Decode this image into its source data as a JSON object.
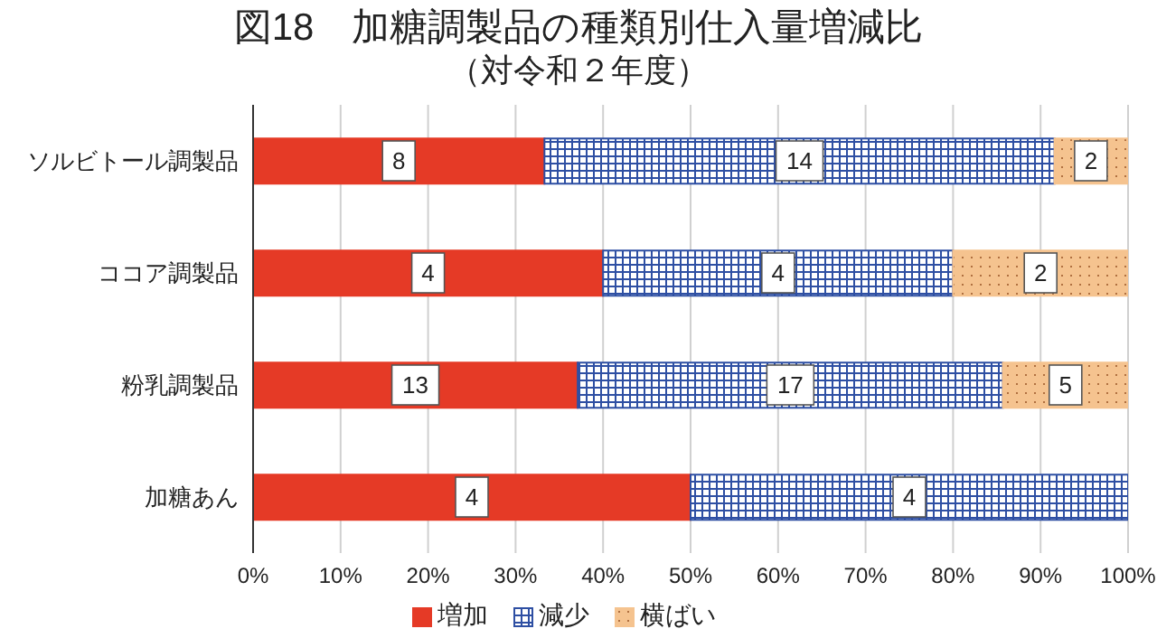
{
  "chart_data": {
    "type": "bar",
    "orientation": "horizontal",
    "stacked": true,
    "title": "図18　加糖調製品の種類別仕入量増減比",
    "subtitle": "（対令和２年度）",
    "categories": [
      "ソルビトール調製品",
      "ココア調製品",
      "粉乳調製品",
      "加糖あん"
    ],
    "series": [
      {
        "name": "増加",
        "color": "#e53a26",
        "values": [
          33.3,
          40,
          37.1,
          50
        ]
      },
      {
        "name": "減少",
        "color": "#2e4fa3",
        "values": [
          58.3,
          40,
          48.6,
          50
        ]
      },
      {
        "name": "横ばい",
        "color": "#f5c38f",
        "values": [
          8.3,
          20,
          14.3,
          0
        ]
      }
    ],
    "annotations": [
      {
        "text": "8",
        "x": 16.65,
        "y": "ソルビトール調製品"
      },
      {
        "text": "14",
        "x": 62.45,
        "y": "ソルビトール調製品"
      },
      {
        "text": "2",
        "x": 95.75,
        "y": "ソルビトール調製品"
      },
      {
        "text": "4",
        "x": 20,
        "y": "ココア調製品"
      },
      {
        "text": "4",
        "x": 60,
        "y": "ココア調製品"
      },
      {
        "text": "2",
        "x": 90,
        "y": "ココア調製品"
      },
      {
        "text": "13",
        "x": 18.55,
        "y": "粉乳調製品"
      },
      {
        "text": "17",
        "x": 61.4,
        "y": "粉乳調製品"
      },
      {
        "text": "5",
        "x": 92.85,
        "y": "粉乳調製品"
      },
      {
        "text": "4",
        "x": 25,
        "y": "加糖あん"
      },
      {
        "text": "4",
        "x": 75,
        "y": "加糖あん"
      }
    ],
    "xlim": [
      0,
      100
    ],
    "xticks": [
      {
        "value": 0,
        "label": "0%"
      },
      {
        "value": 10,
        "label": "10%"
      },
      {
        "value": 20,
        "label": "20%"
      },
      {
        "value": 30,
        "label": "30%"
      },
      {
        "value": 40,
        "label": "40%"
      },
      {
        "value": 50,
        "label": "50%"
      },
      {
        "value": 60,
        "label": "60%"
      },
      {
        "value": 70,
        "label": "70%"
      },
      {
        "value": 80,
        "label": "80%"
      },
      {
        "value": 90,
        "label": "90%"
      },
      {
        "value": 100,
        "label": "100%"
      }
    ],
    "grid": "x",
    "legend": "bottom"
  }
}
